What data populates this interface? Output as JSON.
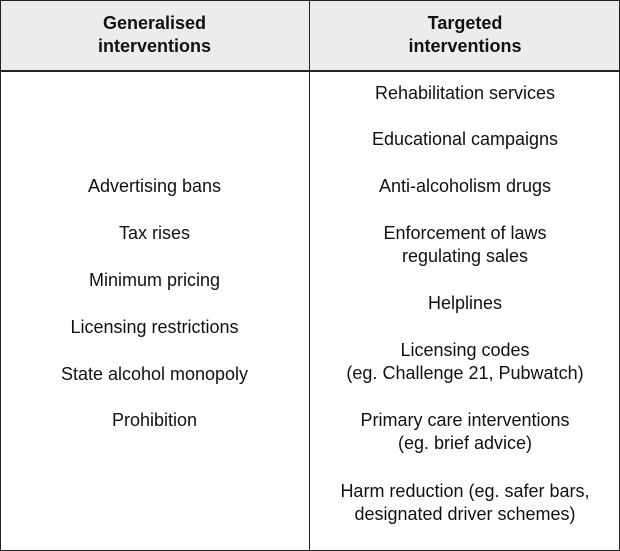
{
  "headers": {
    "generalised": "Generalised\ninterventions",
    "targeted": "Targeted\ninterventions"
  },
  "generalised_items": [
    "Advertising bans",
    "Tax rises",
    "Minimum pricing",
    "Licensing restrictions",
    "State alcohol monopoly",
    "Prohibition"
  ],
  "targeted_items": [
    "Rehabilitation services",
    "Educational campaigns",
    "Anti-alcoholism drugs",
    "Enforcement of laws\nregulating sales",
    "Helplines",
    "Licensing codes\n(eg. Challenge 21, Pubwatch)",
    "Primary care interventions\n(eg. brief advice)",
    "Harm reduction (eg. safer bars,\ndesignated driver schemes)"
  ]
}
